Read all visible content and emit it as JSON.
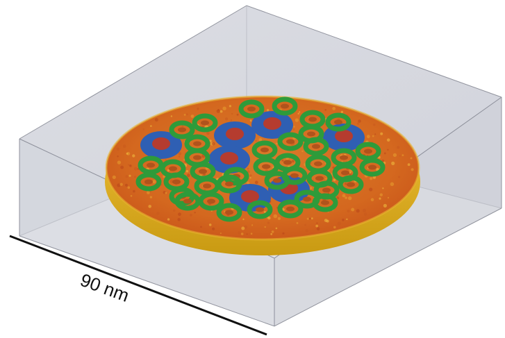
{
  "figure": {
    "scale_bar": {
      "label": "90 nm"
    },
    "colors": {
      "box_face_top": "#c9cbd4",
      "box_face_left": "#d7d8de",
      "box_face_front": "#cfd1d8",
      "box_edge": "#6f7280",
      "disc_rim": "#e6b21a",
      "disc_surface": "#d8661e",
      "ring_protein": "#2e9b3a",
      "ring_core": "#4a6f2a",
      "complex_outer": "#2f5fb3",
      "complex_inner": "#b53c2f"
    },
    "icons": [
      "membrane-disc",
      "protein-ring",
      "protein-complex"
    ],
    "counts": {
      "green_rings": 40,
      "blue_complexes": 7
    }
  }
}
